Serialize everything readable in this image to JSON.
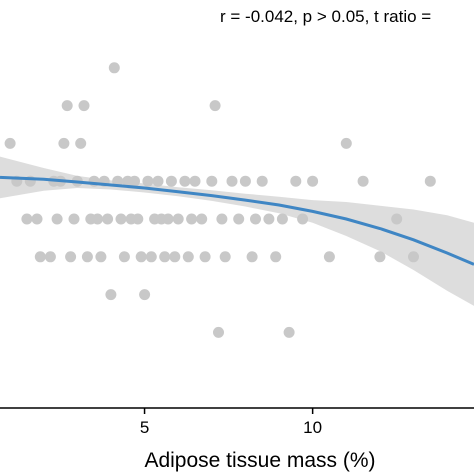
{
  "chart_data": {
    "type": "scatter",
    "annotation": "r = -0.042, p > 0.05, t ratio =",
    "xlabel": "Adipose tissue mass (%)",
    "ylabel": "",
    "xlim": [
      0.7,
      14.8
    ],
    "ylim": [
      0,
      10
    ],
    "xticks": [
      5,
      10
    ],
    "grid": false,
    "colors": {
      "points": "#c8c8c8",
      "line": "#3f86c4",
      "band": "#d2d2d2",
      "axis": "#000000"
    },
    "points": [
      {
        "x": 1.0,
        "y": 7
      },
      {
        "x": 1.2,
        "y": 6
      },
      {
        "x": 1.6,
        "y": 6
      },
      {
        "x": 1.5,
        "y": 5
      },
      {
        "x": 1.8,
        "y": 5
      },
      {
        "x": 1.9,
        "y": 4
      },
      {
        "x": 2.2,
        "y": 4
      },
      {
        "x": 2.3,
        "y": 6
      },
      {
        "x": 2.4,
        "y": 5
      },
      {
        "x": 2.5,
        "y": 6
      },
      {
        "x": 2.6,
        "y": 7
      },
      {
        "x": 2.7,
        "y": 8
      },
      {
        "x": 2.8,
        "y": 4
      },
      {
        "x": 2.9,
        "y": 5
      },
      {
        "x": 3.0,
        "y": 6
      },
      {
        "x": 3.1,
        "y": 7
      },
      {
        "x": 3.2,
        "y": 8
      },
      {
        "x": 3.3,
        "y": 4
      },
      {
        "x": 3.4,
        "y": 5
      },
      {
        "x": 3.5,
        "y": 6
      },
      {
        "x": 3.6,
        "y": 5
      },
      {
        "x": 3.7,
        "y": 4
      },
      {
        "x": 3.8,
        "y": 6
      },
      {
        "x": 3.9,
        "y": 5
      },
      {
        "x": 4.0,
        "y": 3
      },
      {
        "x": 4.1,
        "y": 9
      },
      {
        "x": 4.2,
        "y": 6
      },
      {
        "x": 4.3,
        "y": 5
      },
      {
        "x": 4.4,
        "y": 4
      },
      {
        "x": 4.5,
        "y": 6
      },
      {
        "x": 4.6,
        "y": 5
      },
      {
        "x": 4.7,
        "y": 6
      },
      {
        "x": 4.8,
        "y": 5
      },
      {
        "x": 4.9,
        "y": 4
      },
      {
        "x": 5.0,
        "y": 3
      },
      {
        "x": 5.1,
        "y": 6
      },
      {
        "x": 5.2,
        "y": 4
      },
      {
        "x": 5.3,
        "y": 5
      },
      {
        "x": 5.4,
        "y": 6
      },
      {
        "x": 5.5,
        "y": 5
      },
      {
        "x": 5.6,
        "y": 4
      },
      {
        "x": 5.7,
        "y": 5
      },
      {
        "x": 5.8,
        "y": 6
      },
      {
        "x": 5.9,
        "y": 4
      },
      {
        "x": 6.0,
        "y": 5
      },
      {
        "x": 6.2,
        "y": 6
      },
      {
        "x": 6.3,
        "y": 4
      },
      {
        "x": 6.4,
        "y": 5
      },
      {
        "x": 6.5,
        "y": 6
      },
      {
        "x": 6.7,
        "y": 5
      },
      {
        "x": 6.8,
        "y": 4
      },
      {
        "x": 7.0,
        "y": 6
      },
      {
        "x": 7.1,
        "y": 8
      },
      {
        "x": 7.2,
        "y": 2
      },
      {
        "x": 7.3,
        "y": 5
      },
      {
        "x": 7.4,
        "y": 4
      },
      {
        "x": 7.6,
        "y": 6
      },
      {
        "x": 7.8,
        "y": 5
      },
      {
        "x": 8.0,
        "y": 6
      },
      {
        "x": 8.2,
        "y": 4
      },
      {
        "x": 8.3,
        "y": 5
      },
      {
        "x": 8.5,
        "y": 6
      },
      {
        "x": 8.7,
        "y": 5
      },
      {
        "x": 8.9,
        "y": 4
      },
      {
        "x": 9.1,
        "y": 5
      },
      {
        "x": 9.3,
        "y": 2
      },
      {
        "x": 9.5,
        "y": 6
      },
      {
        "x": 9.7,
        "y": 5
      },
      {
        "x": 10.0,
        "y": 6
      },
      {
        "x": 10.5,
        "y": 4
      },
      {
        "x": 11.0,
        "y": 7
      },
      {
        "x": 11.5,
        "y": 6
      },
      {
        "x": 12.0,
        "y": 4
      },
      {
        "x": 12.5,
        "y": 5
      },
      {
        "x": 13.0,
        "y": 4
      },
      {
        "x": 13.5,
        "y": 6
      }
    ],
    "fit": {
      "x": [
        0.7,
        2,
        3,
        4,
        5,
        6,
        7,
        8,
        9,
        10,
        11,
        12,
        13,
        14,
        14.8
      ],
      "y": [
        6.1,
        6.05,
        5.98,
        5.9,
        5.82,
        5.72,
        5.62,
        5.5,
        5.37,
        5.2,
        5.0,
        4.75,
        4.45,
        4.1,
        3.8
      ],
      "lower": [
        5.55,
        5.75,
        5.82,
        5.78,
        5.7,
        5.6,
        5.48,
        5.33,
        5.15,
        4.9,
        4.55,
        4.15,
        3.65,
        3.1,
        2.7
      ],
      "upper": [
        6.65,
        6.35,
        6.14,
        6.02,
        5.94,
        5.84,
        5.76,
        5.67,
        5.59,
        5.5,
        5.45,
        5.35,
        5.25,
        5.1,
        4.9
      ]
    }
  }
}
